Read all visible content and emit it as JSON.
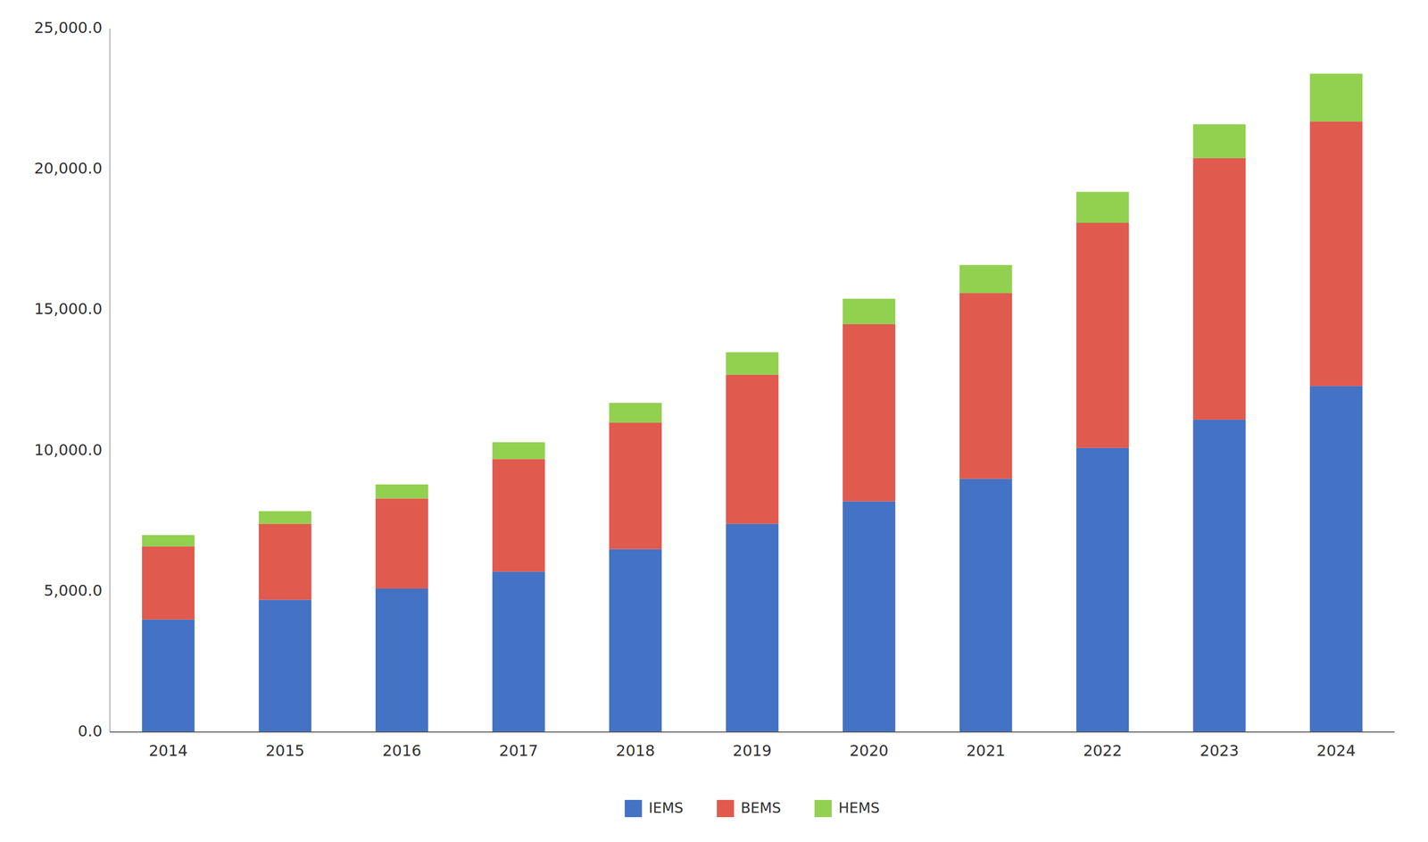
{
  "chart_data": {
    "type": "bar",
    "stacked": true,
    "categories": [
      "2014",
      "2015",
      "2016",
      "2017",
      "2018",
      "2019",
      "2020",
      "2021",
      "2022",
      "2023",
      "2024"
    ],
    "series": [
      {
        "name": "IEMS",
        "color": "#4472c4",
        "values": [
          4000,
          4700,
          5100,
          5700,
          6500,
          7400,
          8200,
          9000,
          10100,
          11100,
          12300
        ]
      },
      {
        "name": "BEMS",
        "color": "#e05a4e",
        "values": [
          2600,
          2700,
          3200,
          4000,
          4500,
          5300,
          6300,
          6600,
          8000,
          9300,
          9400
        ]
      },
      {
        "name": "HEMS",
        "color": "#92d050",
        "values": [
          400,
          450,
          500,
          600,
          700,
          800,
          900,
          1000,
          1100,
          1200,
          1700
        ]
      }
    ],
    "ylim": [
      0,
      25000
    ],
    "yticks": [
      {
        "value": 0,
        "label": "0.0"
      },
      {
        "value": 5000,
        "label": "5,000.0"
      },
      {
        "value": 10000,
        "label": "10,000.0"
      },
      {
        "value": 15000,
        "label": "15,000.0"
      },
      {
        "value": 20000,
        "label": "20,000.0"
      },
      {
        "value": 25000,
        "label": "25,000.0"
      }
    ],
    "grid": false,
    "legend": "bottom"
  }
}
